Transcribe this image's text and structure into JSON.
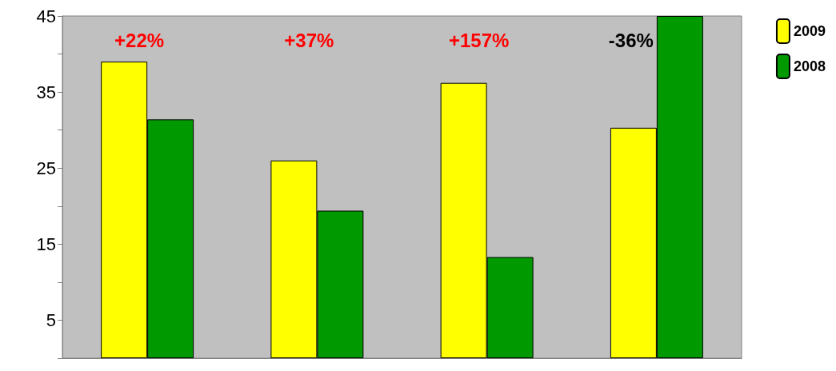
{
  "chart_data": {
    "type": "bar",
    "categories": [
      null,
      null,
      null,
      null
    ],
    "series": [
      {
        "name": "2009",
        "color": "#ffff00",
        "values": [
          39.0,
          26.0,
          36.2,
          30.3
        ]
      },
      {
        "name": "2008",
        "color": "#009900",
        "values": [
          31.4,
          19.4,
          13.3,
          45
        ]
      }
    ],
    "ylim": [
      0,
      45
    ],
    "yticks": [
      {
        "value": 0,
        "label": null
      },
      5,
      {
        "value": 10,
        "label": null
      },
      15,
      {
        "value": 20,
        "label": null
      },
      25,
      {
        "value": 30,
        "label": null
      },
      35,
      {
        "value": 40,
        "label": null
      },
      45
    ],
    "annotations": [
      "+22%",
      "+37%",
      "+157%",
      "-36%"
    ],
    "grid": false,
    "legend": "top right"
  }
}
